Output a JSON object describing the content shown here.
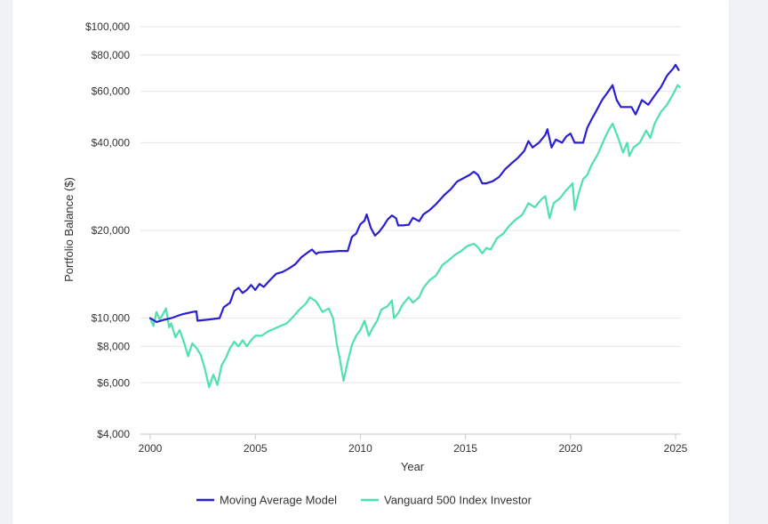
{
  "chart_data": {
    "type": "line",
    "xlabel": "Year",
    "ylabel": "Portfolio Balance ($)",
    "y_scale": "log",
    "ylim": [
      4000,
      100000
    ],
    "xlim": [
      2000,
      2025.2
    ],
    "grid": true,
    "legend_position": "bottom",
    "x_ticks": [
      {
        "value": 2000,
        "label": "2000"
      },
      {
        "value": 2005,
        "label": "2005"
      },
      {
        "value": 2010,
        "label": "2010"
      },
      {
        "value": 2015,
        "label": "2015"
      },
      {
        "value": 2020,
        "label": "2020"
      },
      {
        "value": 2025,
        "label": "2025"
      }
    ],
    "y_ticks": [
      {
        "value": 4000,
        "label": "$4,000"
      },
      {
        "value": 6000,
        "label": "$6,000"
      },
      {
        "value": 8000,
        "label": "$8,000"
      },
      {
        "value": 10000,
        "label": "$10,000"
      },
      {
        "value": 20000,
        "label": "$20,000"
      },
      {
        "value": 40000,
        "label": "$40,000"
      },
      {
        "value": 60000,
        "label": "$60,000"
      },
      {
        "value": 80000,
        "label": "$80,000"
      },
      {
        "value": 100000,
        "label": "$100,000"
      }
    ],
    "series": [
      {
        "name": "Moving Average Model",
        "color": "#2a1fd3",
        "points": [
          [
            2000.0,
            10000
          ],
          [
            2000.3,
            9700
          ],
          [
            2000.6,
            9850
          ],
          [
            2001.0,
            10000
          ],
          [
            2001.5,
            10300
          ],
          [
            2002.0,
            10500
          ],
          [
            2002.2,
            10550
          ],
          [
            2002.25,
            9800
          ],
          [
            2002.8,
            9900
          ],
          [
            2003.3,
            10000
          ],
          [
            2003.5,
            10900
          ],
          [
            2003.8,
            11300
          ],
          [
            2004.0,
            12400
          ],
          [
            2004.2,
            12700
          ],
          [
            2004.4,
            12200
          ],
          [
            2004.6,
            12500
          ],
          [
            2004.8,
            13000
          ],
          [
            2005.0,
            12500
          ],
          [
            2005.2,
            13100
          ],
          [
            2005.4,
            12800
          ],
          [
            2005.7,
            13500
          ],
          [
            2006.0,
            14200
          ],
          [
            2006.3,
            14400
          ],
          [
            2006.6,
            14800
          ],
          [
            2006.9,
            15300
          ],
          [
            2007.2,
            16200
          ],
          [
            2007.5,
            16800
          ],
          [
            2007.7,
            17200
          ],
          [
            2007.9,
            16600
          ],
          [
            2008.0,
            16800
          ],
          [
            2008.5,
            16900
          ],
          [
            2009.0,
            17000
          ],
          [
            2009.4,
            17000
          ],
          [
            2009.6,
            19000
          ],
          [
            2009.8,
            19500
          ],
          [
            2010.0,
            21000
          ],
          [
            2010.2,
            21600
          ],
          [
            2010.3,
            22700
          ],
          [
            2010.5,
            20400
          ],
          [
            2010.7,
            19200
          ],
          [
            2010.9,
            19800
          ],
          [
            2011.1,
            20700
          ],
          [
            2011.3,
            21800
          ],
          [
            2011.5,
            22500
          ],
          [
            2011.7,
            22000
          ],
          [
            2011.8,
            20800
          ],
          [
            2012.0,
            20800
          ],
          [
            2012.3,
            20900
          ],
          [
            2012.5,
            22100
          ],
          [
            2012.8,
            21500
          ],
          [
            2013.0,
            22700
          ],
          [
            2013.3,
            23500
          ],
          [
            2013.6,
            24600
          ],
          [
            2014.0,
            26500
          ],
          [
            2014.3,
            27700
          ],
          [
            2014.6,
            29400
          ],
          [
            2014.9,
            30200
          ],
          [
            2015.2,
            31000
          ],
          [
            2015.4,
            31800
          ],
          [
            2015.6,
            31000
          ],
          [
            2015.8,
            29000
          ],
          [
            2016.0,
            29000
          ],
          [
            2016.3,
            29500
          ],
          [
            2016.6,
            30500
          ],
          [
            2016.9,
            32500
          ],
          [
            2017.2,
            34000
          ],
          [
            2017.5,
            35500
          ],
          [
            2017.8,
            37500
          ],
          [
            2018.0,
            40500
          ],
          [
            2018.2,
            38500
          ],
          [
            2018.5,
            40000
          ],
          [
            2018.8,
            42500
          ],
          [
            2018.9,
            44500
          ],
          [
            2019.1,
            38500
          ],
          [
            2019.3,
            41000
          ],
          [
            2019.6,
            40000
          ],
          [
            2019.8,
            42000
          ],
          [
            2020.0,
            43000
          ],
          [
            2020.2,
            40000
          ],
          [
            2020.6,
            40000
          ],
          [
            2020.8,
            45000
          ],
          [
            2021.0,
            48000
          ],
          [
            2021.2,
            51000
          ],
          [
            2021.5,
            56000
          ],
          [
            2021.8,
            60000
          ],
          [
            2022.0,
            63000
          ],
          [
            2022.2,
            56000
          ],
          [
            2022.4,
            53000
          ],
          [
            2022.9,
            53000
          ],
          [
            2023.1,
            50000
          ],
          [
            2023.4,
            56000
          ],
          [
            2023.7,
            54000
          ],
          [
            2024.0,
            58000
          ],
          [
            2024.3,
            62000
          ],
          [
            2024.6,
            68000
          ],
          [
            2024.9,
            72000
          ],
          [
            2025.0,
            74000
          ],
          [
            2025.15,
            71000
          ]
        ]
      },
      {
        "name": "Vanguard 500 Index Investor",
        "color": "#4fe0b0",
        "points": [
          [
            2000.0,
            10000
          ],
          [
            2000.15,
            9400
          ],
          [
            2000.3,
            10500
          ],
          [
            2000.45,
            9900
          ],
          [
            2000.6,
            10300
          ],
          [
            2000.75,
            10800
          ],
          [
            2000.9,
            9300
          ],
          [
            2001.0,
            9600
          ],
          [
            2001.2,
            8600
          ],
          [
            2001.4,
            9100
          ],
          [
            2001.6,
            8300
          ],
          [
            2001.8,
            7400
          ],
          [
            2002.0,
            8200
          ],
          [
            2002.2,
            7900
          ],
          [
            2002.4,
            7500
          ],
          [
            2002.6,
            6700
          ],
          [
            2002.8,
            5800
          ],
          [
            2003.0,
            6400
          ],
          [
            2003.2,
            5900
          ],
          [
            2003.4,
            6900
          ],
          [
            2003.6,
            7300
          ],
          [
            2003.8,
            7900
          ],
          [
            2004.0,
            8300
          ],
          [
            2004.2,
            8000
          ],
          [
            2004.4,
            8400
          ],
          [
            2004.6,
            8000
          ],
          [
            2004.8,
            8400
          ],
          [
            2005.0,
            8700
          ],
          [
            2005.3,
            8700
          ],
          [
            2005.6,
            9000
          ],
          [
            2005.9,
            9200
          ],
          [
            2006.2,
            9400
          ],
          [
            2006.5,
            9600
          ],
          [
            2006.8,
            10100
          ],
          [
            2007.1,
            10700
          ],
          [
            2007.4,
            11200
          ],
          [
            2007.6,
            11800
          ],
          [
            2007.9,
            11400
          ],
          [
            2008.2,
            10500
          ],
          [
            2008.5,
            10800
          ],
          [
            2008.7,
            10000
          ],
          [
            2008.9,
            8000
          ],
          [
            2009.0,
            7400
          ],
          [
            2009.2,
            6100
          ],
          [
            2009.4,
            7100
          ],
          [
            2009.6,
            8100
          ],
          [
            2009.8,
            8700
          ],
          [
            2010.0,
            9100
          ],
          [
            2010.2,
            9800
          ],
          [
            2010.4,
            8700
          ],
          [
            2010.6,
            9300
          ],
          [
            2010.8,
            9800
          ],
          [
            2011.0,
            10700
          ],
          [
            2011.3,
            11000
          ],
          [
            2011.5,
            11500
          ],
          [
            2011.6,
            10000
          ],
          [
            2011.8,
            10400
          ],
          [
            2012.0,
            11100
          ],
          [
            2012.3,
            11800
          ],
          [
            2012.5,
            11300
          ],
          [
            2012.8,
            11800
          ],
          [
            2013.0,
            12700
          ],
          [
            2013.3,
            13500
          ],
          [
            2013.6,
            14000
          ],
          [
            2013.9,
            15200
          ],
          [
            2014.2,
            15800
          ],
          [
            2014.5,
            16500
          ],
          [
            2014.8,
            17000
          ],
          [
            2015.1,
            17700
          ],
          [
            2015.4,
            18000
          ],
          [
            2015.6,
            17500
          ],
          [
            2015.8,
            16700
          ],
          [
            2016.0,
            17400
          ],
          [
            2016.2,
            17200
          ],
          [
            2016.5,
            18800
          ],
          [
            2016.8,
            19500
          ],
          [
            2017.1,
            20800
          ],
          [
            2017.4,
            21800
          ],
          [
            2017.7,
            22600
          ],
          [
            2018.0,
            24800
          ],
          [
            2018.3,
            24000
          ],
          [
            2018.6,
            25500
          ],
          [
            2018.8,
            26200
          ],
          [
            2019.0,
            22000
          ],
          [
            2019.2,
            24800
          ],
          [
            2019.5,
            25800
          ],
          [
            2019.8,
            27500
          ],
          [
            2020.1,
            29000
          ],
          [
            2020.2,
            23500
          ],
          [
            2020.4,
            27000
          ],
          [
            2020.6,
            30000
          ],
          [
            2020.8,
            31000
          ],
          [
            2021.0,
            33500
          ],
          [
            2021.3,
            36500
          ],
          [
            2021.6,
            41000
          ],
          [
            2021.8,
            44000
          ],
          [
            2022.0,
            46500
          ],
          [
            2022.3,
            41000
          ],
          [
            2022.5,
            37000
          ],
          [
            2022.7,
            40000
          ],
          [
            2022.8,
            36000
          ],
          [
            2023.0,
            38500
          ],
          [
            2023.3,
            40000
          ],
          [
            2023.6,
            44000
          ],
          [
            2023.8,
            41500
          ],
          [
            2024.0,
            46500
          ],
          [
            2024.3,
            51000
          ],
          [
            2024.6,
            54000
          ],
          [
            2024.9,
            59000
          ],
          [
            2025.1,
            63000
          ],
          [
            2025.2,
            62000
          ]
        ]
      }
    ]
  }
}
